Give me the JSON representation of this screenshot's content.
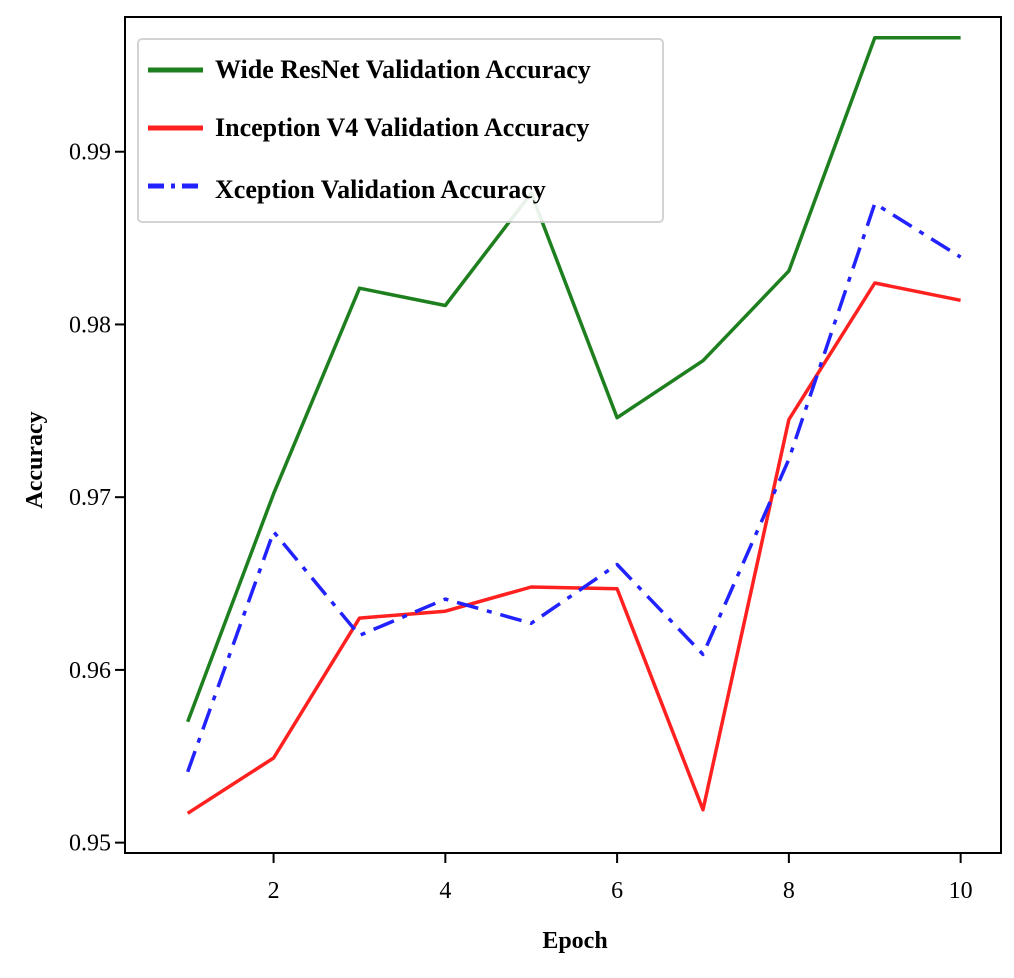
{
  "chart_data": {
    "type": "line",
    "title": "",
    "xlabel": "Epoch",
    "ylabel": "Accuracy",
    "x": [
      1,
      2,
      3,
      4,
      5,
      6,
      7,
      8,
      9,
      10
    ],
    "xlim": [
      0.27,
      10.47
    ],
    "ylim": [
      0.9494,
      0.9978
    ],
    "xticks": [
      2,
      4,
      6,
      8,
      10
    ],
    "xtick_labels": [
      "2",
      "4",
      "6",
      "8",
      "10"
    ],
    "yticks": [
      0.95,
      0.96,
      0.97,
      0.98,
      0.99
    ],
    "ytick_labels": [
      "0.95",
      "0.96",
      "0.97",
      "0.98",
      "0.99"
    ],
    "grid": false,
    "legend_position": "top-left",
    "series": [
      {
        "name": "Wide ResNet Validation Accuracy",
        "color": "#1e7f1e",
        "style": "solid",
        "values": [
          0.957,
          0.9702,
          0.9821,
          0.9811,
          0.9876,
          0.9746,
          0.9779,
          0.9831,
          0.9966,
          0.9966
        ]
      },
      {
        "name": "Inception V4 Validation Accuracy",
        "color": "#ff2020",
        "style": "solid",
        "values": [
          0.9517,
          0.9549,
          0.963,
          0.9634,
          0.9648,
          0.9647,
          0.9519,
          0.9745,
          0.9824,
          0.9814
        ]
      },
      {
        "name": "Xception Validation Accuracy",
        "color": "#2222ff",
        "style": "dashdot",
        "values": [
          0.9541,
          0.968,
          0.962,
          0.9641,
          0.9627,
          0.9661,
          0.9609,
          0.9722,
          0.987,
          0.9839
        ]
      }
    ]
  }
}
